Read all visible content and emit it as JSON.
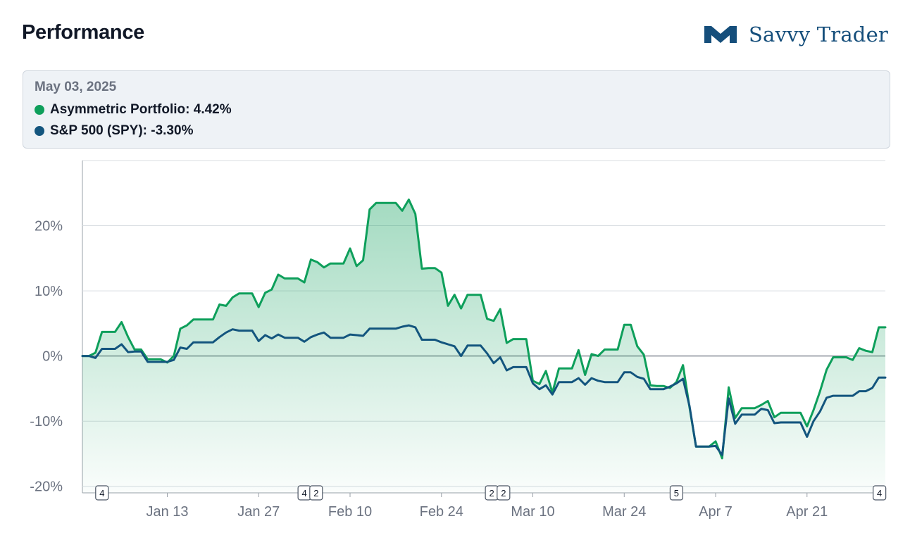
{
  "header": {
    "title": "Performance",
    "brand_name": "Savvy Trader"
  },
  "tooltip": {
    "date": "May 03, 2025",
    "rows": [
      {
        "label": "Asymmetric Portfolio: 4.42%",
        "color": "#0e9f5b"
      },
      {
        "label": "S&P 500 (SPY): -3.30%",
        "color": "#13557e"
      }
    ]
  },
  "chart_data": {
    "type": "line",
    "y_ticks": [
      {
        "value": 20,
        "label": "20%"
      },
      {
        "value": 10,
        "label": "10%"
      },
      {
        "value": 0,
        "label": "0%"
      },
      {
        "value": -10,
        "label": "-10%"
      },
      {
        "value": -20,
        "label": "-20%"
      }
    ],
    "x_ticks": [
      {
        "index": 13,
        "label": "Jan 13"
      },
      {
        "index": 27,
        "label": "Jan 27"
      },
      {
        "index": 41,
        "label": "Feb 10"
      },
      {
        "index": 55,
        "label": "Feb 24"
      },
      {
        "index": 69,
        "label": "Mar 10"
      },
      {
        "index": 83,
        "label": "Mar 24"
      },
      {
        "index": 97,
        "label": "Apr 7"
      },
      {
        "index": 111,
        "label": "Apr 21"
      }
    ],
    "ylim": [
      -21,
      30
    ],
    "xlim": [
      0,
      123
    ],
    "events": [
      {
        "index": 3,
        "label": "4"
      },
      {
        "index": 34,
        "label": "4"
      },
      {
        "index": 35.8,
        "label": "2"
      },
      {
        "index": 62.7,
        "label": "2"
      },
      {
        "index": 64.5,
        "label": "2"
      },
      {
        "index": 91,
        "label": "5"
      },
      {
        "index": 122.1,
        "label": "4"
      }
    ],
    "series": [
      {
        "name": "Asymmetric Portfolio",
        "color": "#0e9f5b",
        "values": [
          0,
          0,
          0.5,
          3.7,
          3.7,
          3.7,
          5.2,
          2.9,
          1,
          1,
          -0.5,
          -0.5,
          -0.5,
          -1,
          0,
          4.2,
          4.7,
          5.6,
          5.6,
          5.6,
          5.6,
          7.9,
          7.7,
          9,
          9.6,
          9.6,
          9.6,
          7.5,
          9.7,
          10.2,
          12.5,
          11.9,
          11.9,
          11.9,
          11.3,
          14.8,
          14.4,
          13.6,
          14.2,
          14.2,
          14.2,
          16.5,
          13.8,
          14.7,
          22.5,
          23.5,
          23.5,
          23.5,
          23.5,
          22.3,
          24,
          21.8,
          13.4,
          13.5,
          13.5,
          12.8,
          7.7,
          9.4,
          7.3,
          9.4,
          9.4,
          9.4,
          5.7,
          5.4,
          7.2,
          2,
          2.6,
          2.6,
          2.6,
          -3.8,
          -4.3,
          -2.3,
          -5.6,
          -1.9,
          -1.9,
          -1.9,
          0.9,
          -2.9,
          0.3,
          0,
          1,
          1,
          1,
          4.8,
          4.8,
          1.5,
          0.2,
          -4.5,
          -4.6,
          -4.6,
          -4.9,
          -4,
          -1.4,
          -7.9,
          -13.9,
          -13.9,
          -13.9,
          -13.1,
          -15.7,
          -4.8,
          -9.5,
          -8,
          -8,
          -8,
          -7.5,
          -6.9,
          -9.4,
          -8.7,
          -8.7,
          -8.7,
          -8.7,
          -10.8,
          -8.3,
          -5.4,
          -2.1,
          -0.2,
          -0.2,
          -0.2,
          -0.6,
          1.2,
          0.8,
          0.6,
          4.4,
          4.4
        ]
      },
      {
        "name": "S&P 500 (SPY)",
        "color": "#13557e",
        "values": [
          0,
          0,
          -0.3,
          1.1,
          1.1,
          1.1,
          1.8,
          0.6,
          0.7,
          0.7,
          -0.9,
          -0.9,
          -0.9,
          -0.9,
          -0.6,
          1.3,
          1.1,
          2.1,
          2.1,
          2.1,
          2.1,
          2.9,
          3.6,
          4.1,
          3.9,
          3.9,
          3.9,
          2.3,
          3.2,
          2.7,
          3.3,
          2.8,
          2.8,
          2.8,
          2.2,
          2.9,
          3.3,
          3.6,
          2.8,
          2.8,
          2.8,
          3.3,
          3.2,
          3.1,
          4.2,
          4.2,
          4.2,
          4.2,
          4.2,
          4.5,
          4.7,
          4.4,
          2.5,
          2.5,
          2.5,
          2.1,
          1.8,
          1.5,
          0,
          1.6,
          1.6,
          1.6,
          0.4,
          -1.1,
          -0.2,
          -2.2,
          -1.7,
          -1.7,
          -1.7,
          -4.2,
          -5.1,
          -4.5,
          -5.9,
          -4,
          -4,
          -4,
          -3.4,
          -4.4,
          -3.4,
          -3.8,
          -4,
          -4,
          -4,
          -2.5,
          -2.5,
          -3.2,
          -3.5,
          -5.1,
          -5.1,
          -5.1,
          -4.7,
          -4.2,
          -3.5,
          -7.7,
          -13.9,
          -13.9,
          -13.9,
          -13.8,
          -15.2,
          -6.5,
          -10.4,
          -9,
          -9,
          -9,
          -8.1,
          -8.3,
          -10.3,
          -10.2,
          -10.2,
          -10.2,
          -10.2,
          -12.4,
          -10,
          -8.5,
          -6.4,
          -6.1,
          -6.1,
          -6.1,
          -6.1,
          -5.4,
          -5.4,
          -4.9,
          -3.3,
          -3.3
        ]
      }
    ]
  }
}
